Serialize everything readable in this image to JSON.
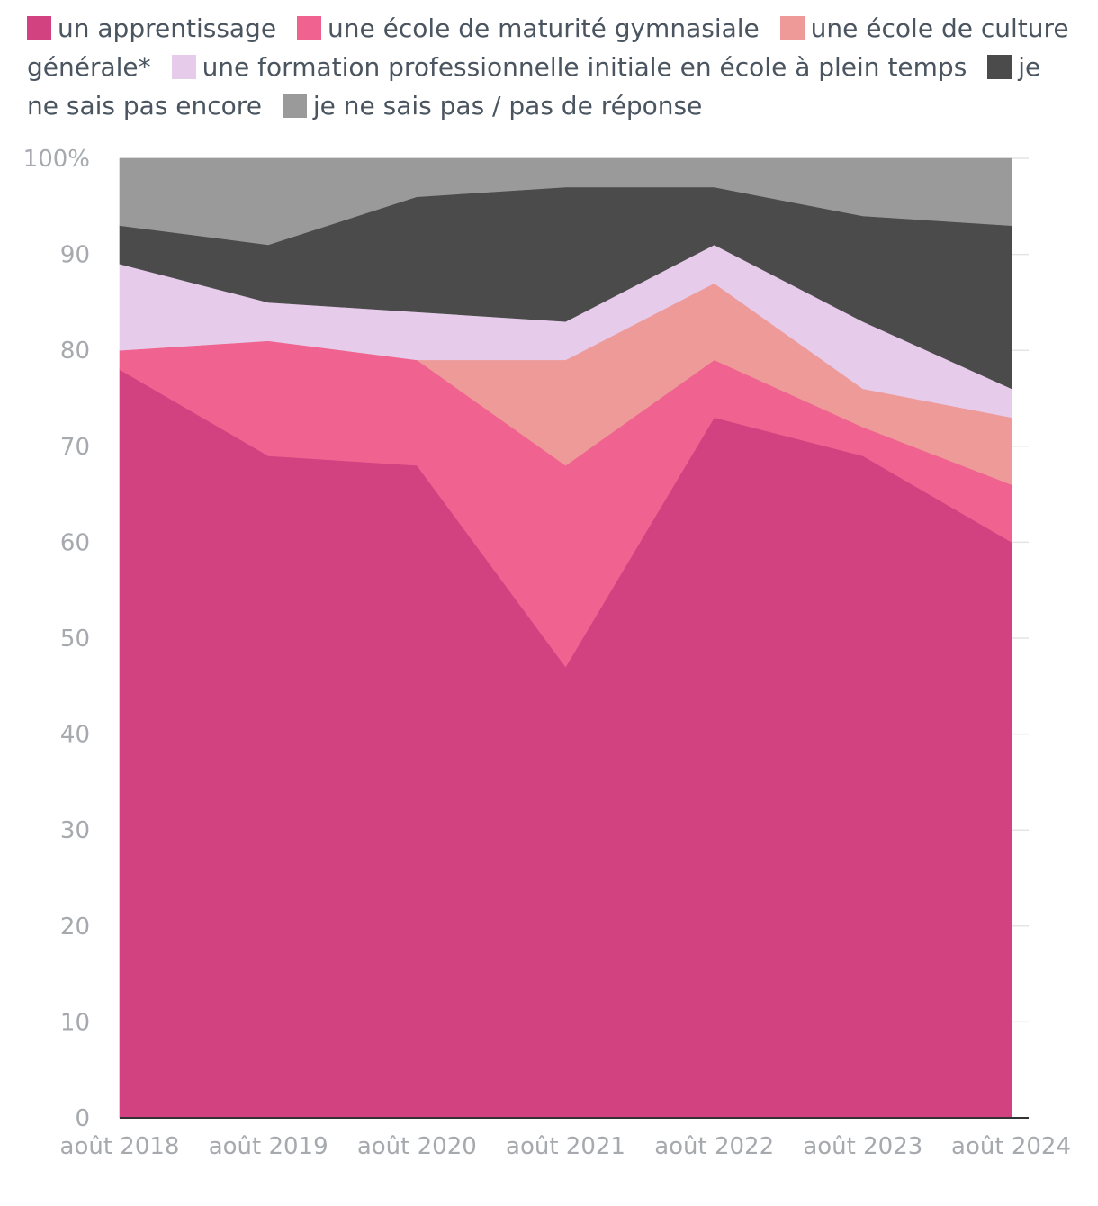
{
  "chart_data": {
    "type": "area",
    "stacked": true,
    "categories": [
      "août 2018",
      "août 2019",
      "août 2020",
      "août 2021",
      "août 2022",
      "août 2023",
      "août 2024"
    ],
    "series": [
      {
        "name": "un apprentissage",
        "color": "#d24180",
        "values": [
          78,
          69,
          68,
          47,
          73,
          69,
          60
        ]
      },
      {
        "name": "une école de maturité gymnasiale",
        "color": "#f0628f",
        "values": [
          2,
          12,
          11,
          21,
          6,
          3,
          6
        ]
      },
      {
        "name": "une école de culture générale*",
        "color": "#ed9a98",
        "values": [
          0,
          0,
          0,
          11,
          8,
          4,
          7
        ]
      },
      {
        "name": "une formation professionnelle initiale en école à plein temps",
        "color": "#e6cbeb",
        "values": [
          9,
          4,
          5,
          4,
          4,
          7,
          3
        ]
      },
      {
        "name": "je ne sais pas encore",
        "color": "#4b4b4b",
        "values": [
          4,
          6,
          12,
          14,
          6,
          11,
          17
        ]
      },
      {
        "name": "je ne sais pas / pas de réponse",
        "color": "#9a9a9a",
        "values": [
          7,
          9,
          4,
          3,
          3,
          6,
          7
        ]
      }
    ],
    "ylim": [
      0,
      100
    ],
    "yticks": [
      0,
      10,
      20,
      30,
      40,
      50,
      60,
      70,
      80,
      90,
      100
    ],
    "ytick_labels": [
      "0",
      "10",
      "20",
      "30",
      "40",
      "50",
      "60",
      "70",
      "80",
      "90",
      "100%"
    ],
    "legend_position": "top",
    "grid": true,
    "xlabel": "",
    "ylabel": ""
  }
}
